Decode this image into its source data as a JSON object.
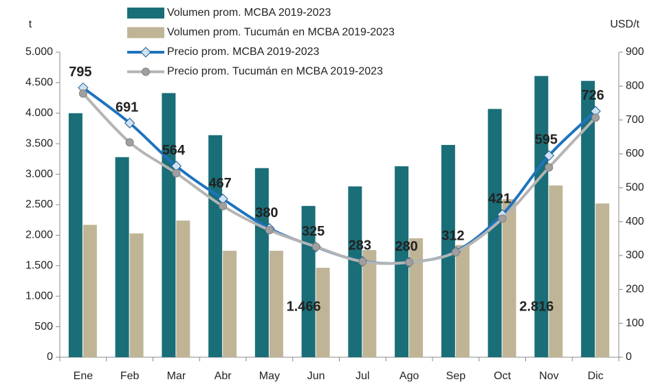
{
  "chart_data": {
    "type": "bar-line",
    "ylabel": "t",
    "y2label": "USD/t",
    "categories": [
      "Ene",
      "Feb",
      "Mar",
      "Abr",
      "May",
      "Jun",
      "Jul",
      "Ago",
      "Sep",
      "Oct",
      "Nov",
      "Dic"
    ],
    "series": [
      {
        "name": "Volumen prom. MCBA 2019-2023",
        "type": "bar",
        "color": "#1a6e78",
        "values": [
          4000,
          3280,
          4330,
          3640,
          3100,
          2480,
          2800,
          3130,
          3480,
          4070,
          4610,
          4530
        ]
      },
      {
        "name": "Volumen prom. Tucumán en MCBA 2019-2023",
        "type": "bar",
        "color": "#bfb596",
        "values": [
          2170,
          2030,
          2240,
          1745,
          1745,
          1466,
          1757,
          1950,
          1840,
          2590,
          2816,
          2520
        ],
        "value_labels": [
          null,
          null,
          null,
          null,
          null,
          "1.466",
          null,
          null,
          null,
          null,
          "2.816",
          null
        ]
      },
      {
        "name": "Precio prom. MCBA 2019-2023",
        "type": "line",
        "axis": "y2",
        "color": "#1e73be",
        "marker": "diamond",
        "values": [
          795,
          691,
          564,
          467,
          380,
          325,
          283,
          280,
          312,
          421,
          595,
          726
        ],
        "show_labels": true
      },
      {
        "name": "Precio prom. Tucumán en MCBA 2019-2023",
        "type": "line",
        "axis": "y2",
        "color": "#b4b4b4",
        "marker": "circle",
        "values": [
          778,
          634,
          543,
          446,
          375,
          326,
          282,
          280,
          310,
          409,
          560,
          707
        ]
      }
    ],
    "ylim": [
      0,
      5000
    ],
    "yticks": [
      {
        "value": 0,
        "label": "0"
      },
      {
        "value": 500,
        "label": "500"
      },
      {
        "value": 1000,
        "label": "1.000"
      },
      {
        "value": 1500,
        "label": "1.500"
      },
      {
        "value": 2000,
        "label": "2.000"
      },
      {
        "value": 2500,
        "label": "2.500"
      },
      {
        "value": 3000,
        "label": "3.000"
      },
      {
        "value": 3500,
        "label": "3.500"
      },
      {
        "value": 4000,
        "label": "4.000"
      },
      {
        "value": 4500,
        "label": "4.500"
      },
      {
        "value": 5000,
        "label": "5.000"
      }
    ],
    "y2lim": [
      0,
      900
    ],
    "y2ticks": [
      0,
      100,
      200,
      300,
      400,
      500,
      600,
      700,
      800,
      900
    ],
    "grid": false
  }
}
